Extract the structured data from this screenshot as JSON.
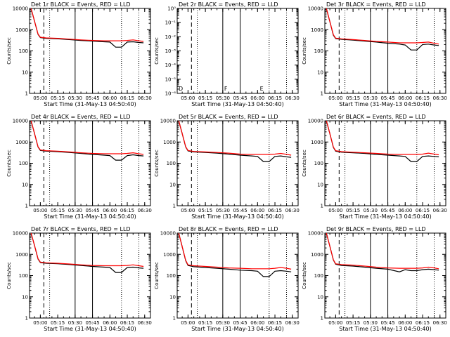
{
  "x_ticks": [
    "05:00",
    "05:15",
    "05:30",
    "05:45",
    "06:00",
    "06:15",
    "06:30"
  ],
  "y_ticks_linear": [
    "1",
    "10",
    "100",
    "1000",
    "10000"
  ],
  "y_ticks_exp": [
    "10⁰",
    "10⁻¹",
    "10⁻²",
    "10⁻³",
    "10⁻⁴",
    "10⁻⁵",
    "10⁻⁶"
  ],
  "xlabel": "Start Time (31-May-13 04:50:40)",
  "ylabel": "Counts/sec",
  "colors": {
    "events": "#000000",
    "lld": "#ff0000"
  },
  "panel_markers": [
    "D",
    "F",
    "E"
  ],
  "chart_data": [
    {
      "type": "line",
      "title": "Det 1r BLACK = Events, RED = LLD",
      "ylabel": "Counts/sec",
      "xlabel": "Start Time (31-May-13 04:50:40)",
      "ylim": [
        1,
        10000
      ],
      "yscale": "log",
      "x": [
        "04:52",
        "04:55",
        "04:58",
        "05:00",
        "05:05",
        "05:15",
        "05:25",
        "05:35",
        "05:45",
        "05:55",
        "06:00",
        "06:05",
        "06:10",
        "06:15",
        "06:20",
        "06:25",
        "06:29"
      ],
      "series": [
        {
          "name": "Events",
          "values": [
            10000,
            2500,
            600,
            420,
            390,
            370,
            340,
            310,
            290,
            270,
            260,
            150,
            150,
            260,
            270,
            250,
            240
          ]
        },
        {
          "name": "LLD",
          "values": [
            10000,
            2500,
            620,
            440,
            410,
            390,
            360,
            330,
            310,
            300,
            300,
            300,
            300,
            310,
            330,
            300,
            280
          ]
        }
      ],
      "dashed_time": "05:03",
      "solid_times": [
        "05:30",
        "05:45"
      ],
      "dotted_times": [
        "05:08",
        "06:10",
        "06:25"
      ],
      "marker": ""
    },
    {
      "type": "line",
      "title": "Det 2r BLACK = Events, RED = LLD",
      "ylabel": "Counts/sec",
      "xlabel": "Start Time (31-May-13 04:50:40)",
      "ylim": [
        1e-06,
        1
      ],
      "yscale": "log",
      "x": [],
      "series": [],
      "dashed_time": "05:03",
      "solid_times": [
        "05:30",
        "05:45"
      ],
      "dotted_times": [
        "05:08",
        "06:10",
        "06:25"
      ],
      "marker": "D"
    },
    {
      "type": "line",
      "title": "Det 3r BLACK = Events, RED = LLD",
      "ylabel": "Counts/sec",
      "xlabel": "Start Time (31-May-13 04:50:40)",
      "ylim": [
        1,
        10000
      ],
      "yscale": "log",
      "x": [
        "04:52",
        "04:55",
        "04:58",
        "05:00",
        "05:05",
        "05:15",
        "05:25",
        "05:35",
        "05:45",
        "05:55",
        "06:00",
        "06:05",
        "06:10",
        "06:15",
        "06:20",
        "06:25",
        "06:29"
      ],
      "series": [
        {
          "name": "Events",
          "values": [
            10000,
            2400,
            550,
            380,
            350,
            320,
            290,
            260,
            230,
            210,
            190,
            110,
            110,
            200,
            210,
            190,
            180
          ]
        },
        {
          "name": "LLD",
          "values": [
            10000,
            2400,
            580,
            400,
            370,
            340,
            310,
            280,
            260,
            240,
            240,
            240,
            240,
            250,
            260,
            230,
            210
          ]
        }
      ],
      "dashed_time": "05:03",
      "solid_times": [
        "05:30",
        "05:45"
      ],
      "dotted_times": [
        "05:08",
        "06:10",
        "06:25"
      ],
      "marker": ""
    },
    {
      "type": "line",
      "title": "Det 4r BLACK = Events, RED = LLD",
      "ylabel": "Counts/sec",
      "xlabel": "Start Time (31-May-13 04:50:40)",
      "ylim": [
        1,
        10000
      ],
      "yscale": "log",
      "x": [
        "04:52",
        "04:55",
        "04:58",
        "05:00",
        "05:05",
        "05:15",
        "05:25",
        "05:35",
        "05:45",
        "05:55",
        "06:00",
        "06:05",
        "06:10",
        "06:15",
        "06:20",
        "06:25",
        "06:29"
      ],
      "series": [
        {
          "name": "Events",
          "values": [
            10000,
            2500,
            580,
            400,
            370,
            350,
            320,
            290,
            260,
            240,
            230,
            140,
            140,
            230,
            250,
            230,
            220
          ]
        },
        {
          "name": "LLD",
          "values": [
            10000,
            2500,
            600,
            420,
            390,
            370,
            340,
            310,
            290,
            280,
            280,
            280,
            280,
            290,
            310,
            280,
            260
          ]
        }
      ],
      "dashed_time": "05:03",
      "solid_times": [
        "05:30",
        "05:45"
      ],
      "dotted_times": [
        "05:08",
        "06:10",
        "06:25"
      ],
      "marker": ""
    },
    {
      "type": "line",
      "title": "Det 5r BLACK = Events, RED = LLD",
      "ylabel": "Counts/sec",
      "xlabel": "Start Time (31-May-13 04:50:40)",
      "ylim": [
        1,
        10000
      ],
      "yscale": "log",
      "x": [
        "04:52",
        "04:55",
        "04:58",
        "05:00",
        "05:05",
        "05:15",
        "05:25",
        "05:35",
        "05:45",
        "05:55",
        "06:00",
        "06:05",
        "06:10",
        "06:15",
        "06:20",
        "06:25",
        "06:29"
      ],
      "series": [
        {
          "name": "Events",
          "values": [
            10000,
            2500,
            580,
            380,
            340,
            320,
            300,
            270,
            240,
            220,
            210,
            120,
            120,
            210,
            220,
            200,
            190
          ]
        },
        {
          "name": "LLD",
          "values": [
            10000,
            2500,
            600,
            400,
            360,
            340,
            320,
            300,
            270,
            260,
            260,
            260,
            260,
            270,
            290,
            260,
            240
          ]
        }
      ],
      "dashed_time": "05:03",
      "solid_times": [
        "05:30",
        "05:45"
      ],
      "dotted_times": [
        "05:08",
        "06:10",
        "06:25"
      ],
      "marker": ""
    },
    {
      "type": "line",
      "title": "Det 6r BLACK = Events, RED = LLD",
      "ylabel": "Counts/sec",
      "xlabel": "Start Time (31-May-13 04:50:40)",
      "ylim": [
        1,
        10000
      ],
      "yscale": "log",
      "x": [
        "04:52",
        "04:55",
        "04:58",
        "05:00",
        "05:05",
        "05:15",
        "05:25",
        "05:35",
        "05:45",
        "05:55",
        "06:00",
        "06:05",
        "06:10",
        "06:15",
        "06:20",
        "06:25",
        "06:29"
      ],
      "series": [
        {
          "name": "Events",
          "values": [
            10000,
            2500,
            560,
            370,
            330,
            310,
            290,
            260,
            240,
            220,
            210,
            120,
            120,
            210,
            220,
            210,
            200
          ]
        },
        {
          "name": "LLD",
          "values": [
            10000,
            2500,
            580,
            390,
            350,
            330,
            310,
            290,
            270,
            260,
            260,
            260,
            260,
            270,
            300,
            270,
            250
          ]
        }
      ],
      "dashed_time": "05:03",
      "solid_times": [
        "05:30",
        "05:45"
      ],
      "dotted_times": [
        "05:08",
        "06:10",
        "06:25"
      ],
      "marker": ""
    },
    {
      "type": "line",
      "title": "Det 7r BLACK = Events, RED = LLD",
      "ylabel": "Counts/sec",
      "xlabel": "Start Time (31-May-13 04:50:40)",
      "ylim": [
        1,
        10000
      ],
      "yscale": "log",
      "x": [
        "04:52",
        "04:55",
        "04:58",
        "05:00",
        "05:05",
        "05:15",
        "05:25",
        "05:35",
        "05:45",
        "05:55",
        "06:00",
        "06:05",
        "06:10",
        "06:15",
        "06:20",
        "06:25",
        "06:29"
      ],
      "series": [
        {
          "name": "Events",
          "values": [
            10000,
            2600,
            600,
            410,
            380,
            360,
            330,
            300,
            270,
            250,
            240,
            140,
            140,
            240,
            250,
            230,
            220
          ]
        },
        {
          "name": "LLD",
          "values": [
            10000,
            2600,
            620,
            430,
            400,
            380,
            350,
            320,
            300,
            290,
            290,
            290,
            290,
            300,
            320,
            290,
            270
          ]
        }
      ],
      "dashed_time": "05:03",
      "solid_times": [
        "05:30",
        "05:45"
      ],
      "dotted_times": [
        "05:08",
        "06:10",
        "06:25"
      ],
      "marker": ""
    },
    {
      "type": "line",
      "title": "Det 8r BLACK = Events, RED = LLD",
      "ylabel": "Counts/sec",
      "xlabel": "Start Time (31-May-13 04:50:40)",
      "ylim": [
        1,
        10000
      ],
      "yscale": "log",
      "x": [
        "04:52",
        "04:55",
        "04:58",
        "05:00",
        "05:05",
        "05:15",
        "05:25",
        "05:35",
        "05:45",
        "05:55",
        "06:00",
        "06:05",
        "06:10",
        "06:15",
        "06:20",
        "06:25",
        "06:29"
      ],
      "series": [
        {
          "name": "Events",
          "values": [
            10000,
            2300,
            500,
            300,
            260,
            240,
            220,
            200,
            180,
            170,
            160,
            90,
            90,
            160,
            170,
            160,
            150
          ]
        },
        {
          "name": "LLD",
          "values": [
            10000,
            2300,
            520,
            320,
            290,
            270,
            250,
            230,
            220,
            210,
            210,
            210,
            210,
            220,
            240,
            220,
            200
          ]
        }
      ],
      "dashed_time": "05:03",
      "solid_times": [
        "05:30",
        "05:45"
      ],
      "dotted_times": [
        "05:08",
        "06:10",
        "06:25"
      ],
      "marker": ""
    },
    {
      "type": "line",
      "title": "Det 9r BLACK = Events, RED = LLD",
      "ylabel": "Counts/sec",
      "xlabel": "Start Time (31-May-13 04:50:40)",
      "ylim": [
        1,
        10000
      ],
      "yscale": "log",
      "x": [
        "04:52",
        "04:55",
        "04:58",
        "05:00",
        "05:05",
        "05:15",
        "05:25",
        "05:35",
        "05:45",
        "05:55",
        "06:00",
        "06:05",
        "06:10",
        "06:15",
        "06:20",
        "06:25",
        "06:29"
      ],
      "series": [
        {
          "name": "Events",
          "values": [
            10000,
            2400,
            540,
            340,
            300,
            280,
            250,
            220,
            200,
            150,
            190,
            170,
            170,
            190,
            200,
            190,
            180
          ]
        },
        {
          "name": "LLD",
          "values": [
            10000,
            2400,
            560,
            360,
            330,
            310,
            280,
            250,
            230,
            220,
            220,
            220,
            220,
            230,
            250,
            230,
            210
          ]
        }
      ],
      "dashed_time": "05:03",
      "solid_times": [
        "05:30",
        "05:45"
      ],
      "dotted_times": [
        "05:08",
        "06:10",
        "06:25"
      ],
      "marker": ""
    }
  ]
}
